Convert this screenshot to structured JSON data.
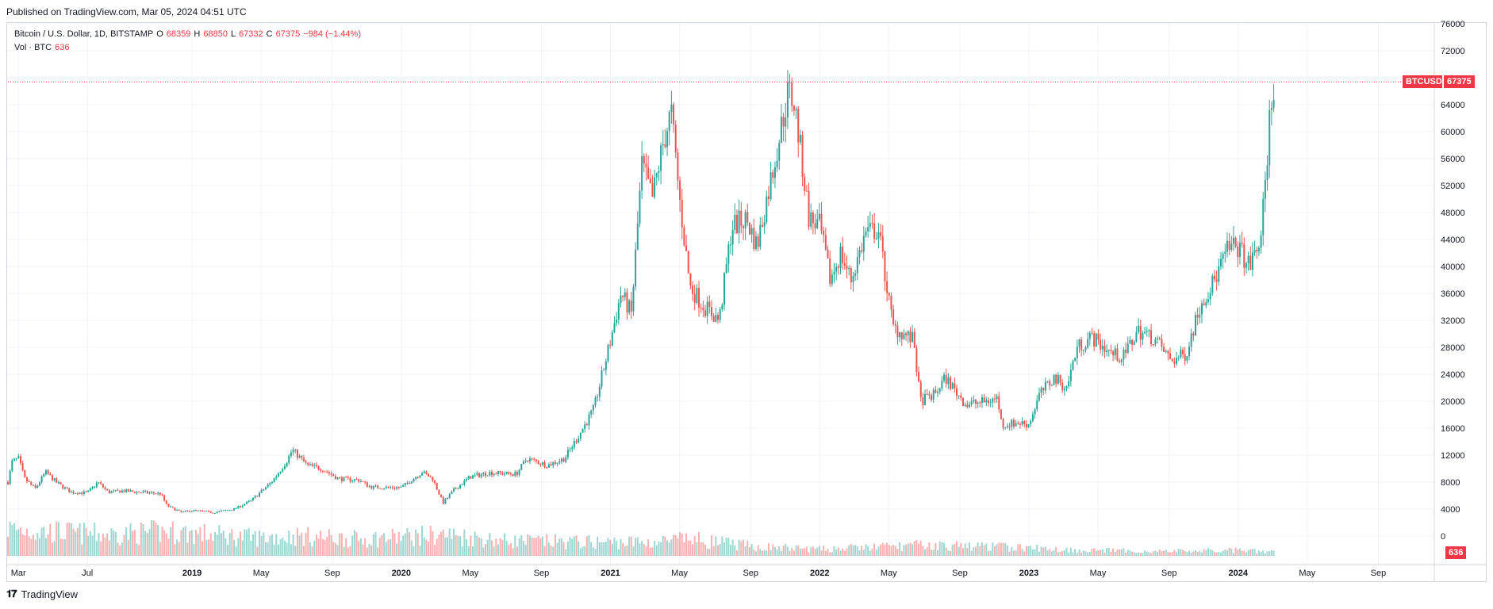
{
  "header": {
    "published": "Published on TradingView.com, Mar 05, 2024 04:51 UTC"
  },
  "legend": {
    "symbol": "Bitcoin / U.S. Dollar, 1D, BITSTAMP",
    "o_label": "O",
    "o_value": "68359",
    "h_label": "H",
    "h_value": "68850",
    "l_label": "L",
    "l_value": "67332",
    "c_label": "C",
    "c_value": "67375",
    "change": "−984 (−1.44%)",
    "vol_label": "Vol · BTC",
    "vol_value": "636"
  },
  "price_tag": {
    "symbol": "BTCUSD",
    "value": "67375"
  },
  "volume_tag": {
    "value": "636"
  },
  "footer": {
    "brand": "TradingView",
    "logo": "tv-logo-icon"
  },
  "colors": {
    "up": "#26a69a",
    "down": "#ef5350",
    "grid": "#f0f3fa",
    "axis": "#131722",
    "tag": "#f23645"
  },
  "chart_data": {
    "type": "line",
    "title": "Bitcoin / U.S. Dollar, 1D, BITSTAMP",
    "xlabel": "",
    "ylabel": "",
    "ylim": [
      0,
      76000
    ],
    "grid": true,
    "y_ticks": [
      0,
      4000,
      8000,
      12000,
      16000,
      20000,
      24000,
      28000,
      32000,
      36000,
      40000,
      44000,
      48000,
      52000,
      56000,
      60000,
      64000,
      68000,
      72000,
      76000
    ],
    "y_tick_labels": [
      "0",
      "4000",
      "8000",
      "12000",
      "16000",
      "20000",
      "24000",
      "28000",
      "32000",
      "36000",
      "40000",
      "44000",
      "48000",
      "52000",
      "56000",
      "60000",
      "64000",
      "",
      "72000",
      "76000"
    ],
    "x_ticks": [
      {
        "t": 2018.17,
        "label": "Mar"
      },
      {
        "t": 2018.5,
        "label": "Jul"
      },
      {
        "t": 2019.0,
        "label": "2019"
      },
      {
        "t": 2019.33,
        "label": "May"
      },
      {
        "t": 2019.67,
        "label": "Sep"
      },
      {
        "t": 2020.0,
        "label": "2020"
      },
      {
        "t": 2020.33,
        "label": "May"
      },
      {
        "t": 2020.67,
        "label": "Sep"
      },
      {
        "t": 2021.0,
        "label": "2021"
      },
      {
        "t": 2021.33,
        "label": "May"
      },
      {
        "t": 2021.67,
        "label": "Sep"
      },
      {
        "t": 2022.0,
        "label": "2022"
      },
      {
        "t": 2022.33,
        "label": "May"
      },
      {
        "t": 2022.67,
        "label": "Sep"
      },
      {
        "t": 2023.0,
        "label": "2023"
      },
      {
        "t": 2023.33,
        "label": "May"
      },
      {
        "t": 2023.67,
        "label": "Sep"
      },
      {
        "t": 2024.0,
        "label": "2024"
      },
      {
        "t": 2024.33,
        "label": "May"
      },
      {
        "t": 2024.67,
        "label": "Sep"
      }
    ],
    "x_range": [
      2018.12,
      2024.93
    ],
    "last_price": 67375,
    "series": [
      {
        "name": "BTCUSD close (approx.)",
        "points": [
          [
            2018.12,
            8000
          ],
          [
            2018.14,
            11000
          ],
          [
            2018.17,
            11500
          ],
          [
            2018.2,
            8500
          ],
          [
            2018.25,
            7000
          ],
          [
            2018.3,
            9500
          ],
          [
            2018.35,
            8000
          ],
          [
            2018.42,
            6500
          ],
          [
            2018.5,
            6400
          ],
          [
            2018.55,
            8000
          ],
          [
            2018.6,
            6500
          ],
          [
            2018.67,
            6700
          ],
          [
            2018.75,
            6500
          ],
          [
            2018.85,
            6300
          ],
          [
            2018.88,
            4500
          ],
          [
            2018.95,
            3500
          ],
          [
            2019.0,
            3800
          ],
          [
            2019.1,
            3500
          ],
          [
            2019.2,
            4000
          ],
          [
            2019.28,
            5200
          ],
          [
            2019.38,
            8000
          ],
          [
            2019.45,
            11000
          ],
          [
            2019.48,
            12800
          ],
          [
            2019.55,
            10500
          ],
          [
            2019.62,
            10000
          ],
          [
            2019.7,
            8500
          ],
          [
            2019.8,
            8300
          ],
          [
            2019.85,
            7300
          ],
          [
            2019.92,
            7200
          ],
          [
            2020.0,
            7200
          ],
          [
            2020.1,
            9500
          ],
          [
            2020.15,
            8500
          ],
          [
            2020.2,
            4900
          ],
          [
            2020.25,
            6800
          ],
          [
            2020.33,
            8800
          ],
          [
            2020.42,
            9400
          ],
          [
            2020.55,
            9200
          ],
          [
            2020.6,
            11500
          ],
          [
            2020.7,
            10500
          ],
          [
            2020.78,
            11500
          ],
          [
            2020.85,
            15000
          ],
          [
            2020.92,
            18800
          ],
          [
            2021.0,
            29000
          ],
          [
            2021.05,
            36000
          ],
          [
            2021.1,
            33000
          ],
          [
            2021.15,
            55000
          ],
          [
            2021.2,
            50000
          ],
          [
            2021.25,
            58000
          ],
          [
            2021.29,
            63000
          ],
          [
            2021.33,
            50000
          ],
          [
            2021.38,
            37000
          ],
          [
            2021.45,
            34000
          ],
          [
            2021.52,
            32000
          ],
          [
            2021.58,
            46000
          ],
          [
            2021.65,
            47000
          ],
          [
            2021.7,
            43000
          ],
          [
            2021.78,
            55000
          ],
          [
            2021.85,
            66000
          ],
          [
            2021.88,
            64000
          ],
          [
            2021.95,
            47000
          ],
          [
            2022.0,
            46000
          ],
          [
            2022.05,
            38000
          ],
          [
            2022.1,
            42000
          ],
          [
            2022.15,
            38000
          ],
          [
            2022.22,
            45000
          ],
          [
            2022.28,
            45500
          ],
          [
            2022.35,
            31000
          ],
          [
            2022.45,
            29000
          ],
          [
            2022.48,
            20000
          ],
          [
            2022.55,
            21000
          ],
          [
            2022.6,
            23500
          ],
          [
            2022.7,
            19500
          ],
          [
            2022.8,
            20000
          ],
          [
            2022.85,
            20500
          ],
          [
            2022.87,
            16500
          ],
          [
            2022.95,
            16800
          ],
          [
            2023.0,
            16600
          ],
          [
            2023.05,
            21000
          ],
          [
            2023.12,
            23500
          ],
          [
            2023.18,
            22000
          ],
          [
            2023.23,
            28000
          ],
          [
            2023.3,
            29500
          ],
          [
            2023.4,
            27000
          ],
          [
            2023.45,
            26500
          ],
          [
            2023.52,
            30500
          ],
          [
            2023.6,
            29300
          ],
          [
            2023.68,
            26000
          ],
          [
            2023.75,
            27000
          ],
          [
            2023.82,
            34500
          ],
          [
            2023.88,
            37500
          ],
          [
            2023.95,
            42500
          ],
          [
            2024.0,
            43000
          ],
          [
            2024.05,
            40000
          ],
          [
            2024.1,
            43000
          ],
          [
            2024.13,
            51500
          ],
          [
            2024.15,
            62000
          ],
          [
            2024.17,
            67375
          ]
        ]
      },
      {
        "name": "Volume BTC (relative)",
        "points": [
          [
            2018.12,
            0.9
          ],
          [
            2018.3,
            0.8
          ],
          [
            2018.6,
            0.7
          ],
          [
            2018.88,
            0.8
          ],
          [
            2019.3,
            0.6
          ],
          [
            2019.5,
            0.65
          ],
          [
            2019.8,
            0.55
          ],
          [
            2020.2,
            0.7
          ],
          [
            2020.5,
            0.5
          ],
          [
            2020.9,
            0.45
          ],
          [
            2021.2,
            0.45
          ],
          [
            2021.38,
            0.55
          ],
          [
            2021.7,
            0.3
          ],
          [
            2022.0,
            0.22
          ],
          [
            2022.48,
            0.35
          ],
          [
            2022.87,
            0.3
          ],
          [
            2023.2,
            0.2
          ],
          [
            2023.6,
            0.15
          ],
          [
            2024.0,
            0.18
          ],
          [
            2024.17,
            0.12
          ]
        ]
      }
    ]
  }
}
